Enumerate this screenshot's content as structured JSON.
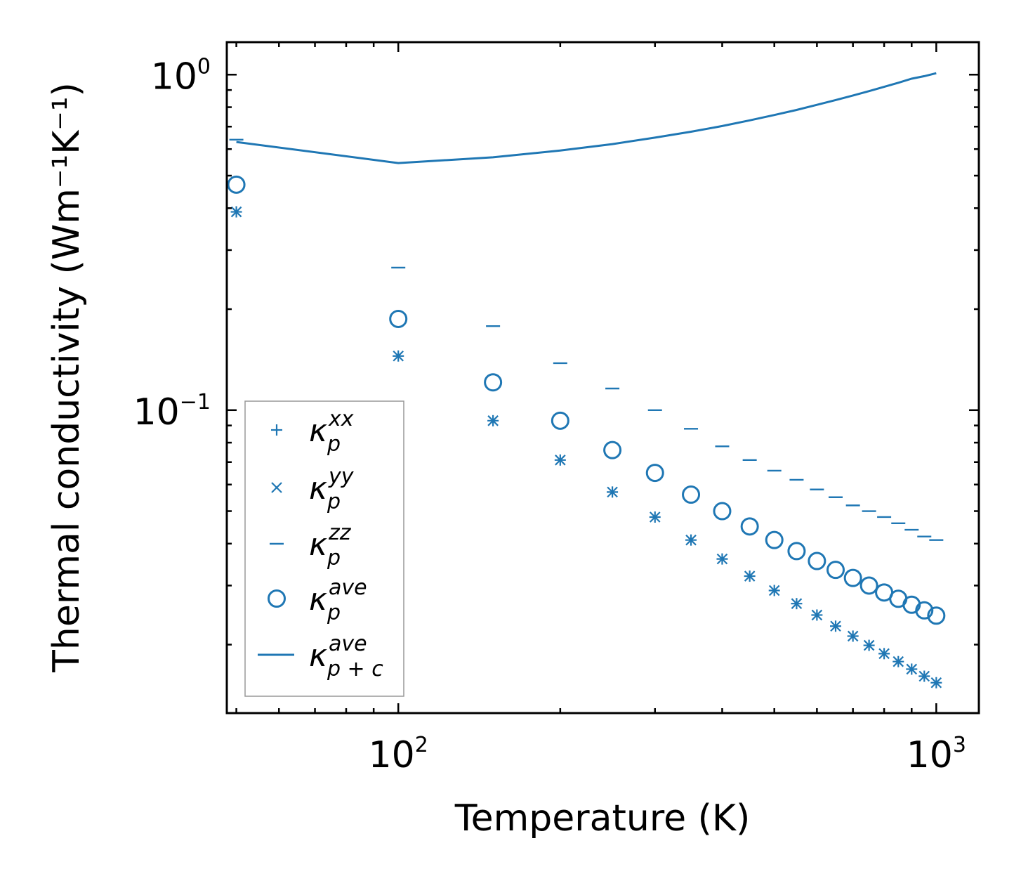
{
  "chart_data": {
    "type": "scatter",
    "title": "",
    "xlabel": "Temperature (K)",
    "ylabel": "Thermal conductivity (Wm⁻¹K⁻¹)",
    "xscale": "log",
    "yscale": "log",
    "xlim": [
      48,
      1200
    ],
    "ylim": [
      0.0125,
      1.25
    ],
    "grid": false,
    "legend_position": "lower-left",
    "color": "#1f77b4",
    "x": [
      50,
      100,
      150,
      200,
      250,
      300,
      350,
      400,
      450,
      500,
      550,
      600,
      650,
      700,
      750,
      800,
      850,
      900,
      950,
      1000
    ],
    "series": [
      {
        "name": "κp^xx",
        "marker": "plus",
        "values": [
          0.39,
          0.145,
          0.093,
          0.071,
          0.057,
          0.048,
          0.041,
          0.036,
          0.032,
          0.029,
          0.0265,
          0.0245,
          0.0227,
          0.0212,
          0.0199,
          0.0188,
          0.0178,
          0.0169,
          0.0161,
          0.0154
        ]
      },
      {
        "name": "κp^yy",
        "marker": "x",
        "values": [
          0.39,
          0.145,
          0.093,
          0.071,
          0.057,
          0.048,
          0.041,
          0.036,
          0.032,
          0.029,
          0.0265,
          0.0245,
          0.0227,
          0.0212,
          0.0199,
          0.0188,
          0.0178,
          0.0169,
          0.0161,
          0.0154
        ]
      },
      {
        "name": "κp^zz",
        "marker": "hline",
        "values": [
          0.64,
          0.266,
          0.178,
          0.138,
          0.116,
          0.1,
          0.088,
          0.078,
          0.071,
          0.066,
          0.062,
          0.058,
          0.055,
          0.052,
          0.05,
          0.048,
          0.046,
          0.044,
          0.042,
          0.041
        ]
      },
      {
        "name": "κp^ave",
        "marker": "circle",
        "values": [
          0.47,
          0.187,
          0.121,
          0.093,
          0.076,
          0.065,
          0.056,
          0.05,
          0.045,
          0.041,
          0.038,
          0.0355,
          0.0334,
          0.0316,
          0.03,
          0.0286,
          0.0274,
          0.0263,
          0.0253,
          0.0244
        ]
      },
      {
        "name": "κp+c^ave",
        "marker": "line",
        "values": [
          0.63,
          0.545,
          0.567,
          0.594,
          0.621,
          0.649,
          0.676,
          0.703,
          0.731,
          0.758,
          0.785,
          0.813,
          0.84,
          0.867,
          0.893,
          0.92,
          0.946,
          0.973,
          0.99,
          1.01
        ]
      }
    ],
    "x_ticks": [
      {
        "value": 100,
        "base": "10",
        "exp": "2"
      },
      {
        "value": 1000,
        "base": "10",
        "exp": "3"
      }
    ],
    "y_ticks": [
      {
        "value": 1.0,
        "base": "10",
        "exp": "0"
      },
      {
        "value": 0.1,
        "base": "10",
        "exp": "−1"
      }
    ],
    "legend": [
      {
        "symbol": "κ",
        "sub": "p",
        "sup": "xx",
        "marker": "plus"
      },
      {
        "symbol": "κ",
        "sub": "p",
        "sup": "yy",
        "marker": "x"
      },
      {
        "symbol": "κ",
        "sub": "p",
        "sup": "zz",
        "marker": "hline"
      },
      {
        "symbol": "κ",
        "sub": "p",
        "sup": "ave",
        "marker": "circle"
      },
      {
        "symbol": "κ",
        "sub": "p + c",
        "sup": "ave",
        "marker": "line"
      }
    ]
  }
}
